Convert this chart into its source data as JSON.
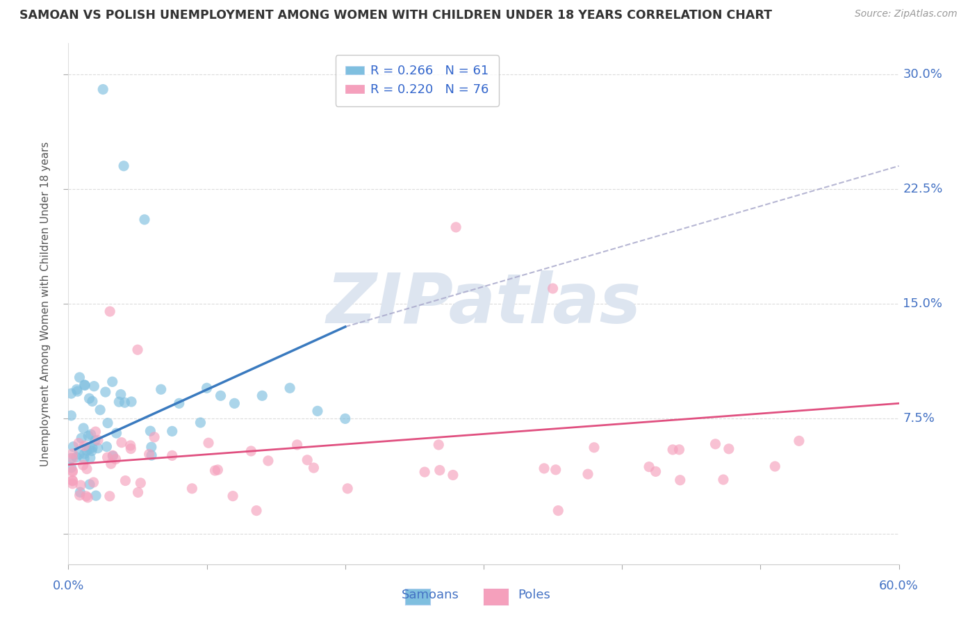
{
  "title": "SAMOAN VS POLISH UNEMPLOYMENT AMONG WOMEN WITH CHILDREN UNDER 18 YEARS CORRELATION CHART",
  "source": "Source: ZipAtlas.com",
  "ylabel": "Unemployment Among Women with Children Under 18 years",
  "ytick_values": [
    0.0,
    7.5,
    15.0,
    22.5,
    30.0
  ],
  "ytick_labels": [
    "",
    "7.5%",
    "15.0%",
    "22.5%",
    "30.0%"
  ],
  "xtick_values": [
    0.0,
    10.0,
    20.0,
    30.0,
    40.0,
    50.0,
    60.0
  ],
  "xtick_labels": [
    "",
    "",
    "",
    "",
    "",
    "",
    ""
  ],
  "xlim": [
    0.0,
    60.0
  ],
  "ylim": [
    -2.0,
    32.0
  ],
  "samoans_R": 0.266,
  "samoans_N": 61,
  "poles_R": 0.22,
  "poles_N": 76,
  "samoan_color": "#7fbfdf",
  "pole_color": "#f5a0bc",
  "samoan_trend_color": "#3a7abf",
  "samoan_dashed_color": "#aaaacc",
  "pole_trend_color": "#e05080",
  "background_color": "#ffffff",
  "grid_color": "#cccccc",
  "watermark_color": "#dde5f0",
  "legend_label_samoan": "R = 0.266   N = 61",
  "legend_label_pole": "R = 0.220   N = 76",
  "legend_text_color": "#3366cc",
  "title_color": "#333333",
  "axis_label_color": "#4472c4",
  "ylabel_color": "#555555",
  "samoan_trend_x1": 0.5,
  "samoan_trend_y1": 5.5,
  "samoan_trend_x2": 20.0,
  "samoan_trend_y2": 13.5,
  "samoan_dashed_x1": 20.0,
  "samoan_dashed_y1": 13.5,
  "samoan_dashed_x2": 60.0,
  "samoan_dashed_y2": 24.0,
  "pole_trend_x1": 0.0,
  "pole_trend_y1": 4.5,
  "pole_trend_x2": 60.0,
  "pole_trend_y2": 8.5
}
